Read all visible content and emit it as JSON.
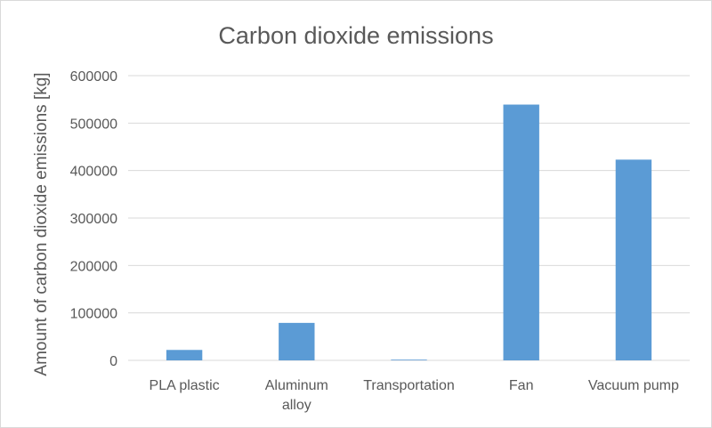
{
  "chart_data": {
    "type": "bar",
    "title": "Carbon dioxide emissions",
    "xlabel": "",
    "ylabel": "Amount of carbon dioxide emissions [kg]",
    "categories": [
      [
        "PLA plastic"
      ],
      [
        "Aluminum",
        "alloy"
      ],
      [
        "Transportation"
      ],
      [
        "Fan"
      ],
      [
        "Vacuum pump"
      ]
    ],
    "values": [
      22000,
      79000,
      1500,
      539000,
      423000
    ],
    "ylim": [
      0,
      600000
    ],
    "yticks": [
      "0",
      "100000",
      "200000",
      "300000",
      "400000",
      "500000",
      "600000"
    ],
    "grid": true,
    "legend": "none",
    "bar_color": "#5b9bd5"
  }
}
